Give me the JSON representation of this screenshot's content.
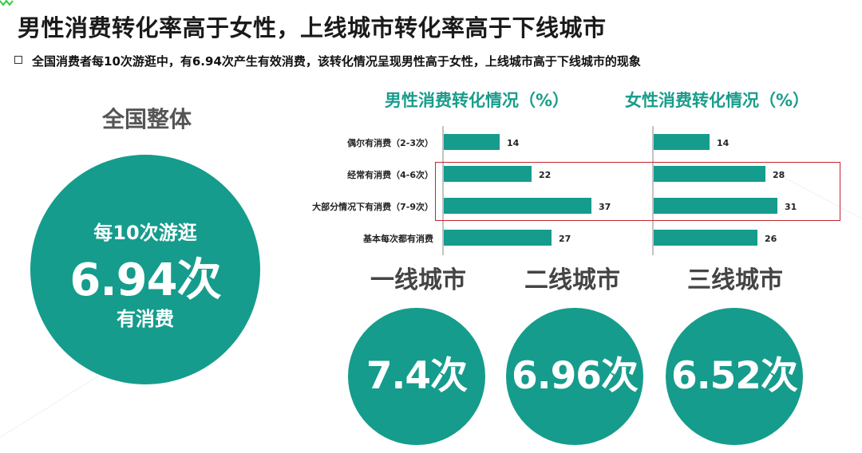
{
  "title": "男性消费转化率高于女性，上线城市转化率高于下线城市",
  "subtitle": "全国消费者每10次游逛中，有6.94次产生有效消费，该转化情况呈现男性高于女性，上线城市高于下线城市的现象",
  "colors": {
    "teal": "#159c8c",
    "title_teal": "#1a9c8c",
    "highlight_red": "#c1272d",
    "accent_green": "#2ecc40"
  },
  "national": {
    "title": "全国整体",
    "line1": "每10次游逛",
    "value": "6.94次",
    "line3": "有消费"
  },
  "chart_data": [
    {
      "type": "bar",
      "orientation": "horizontal",
      "title": "男性消费转化情况（%）",
      "categories": [
        "偶尔有消费（2-3次）",
        "经常有消费（4-6次）",
        "大部分情况下有消费（7-9次）",
        "基本每次都有消费"
      ],
      "values": [
        14,
        22,
        37,
        27
      ],
      "xlim": [
        0,
        40
      ]
    },
    {
      "type": "bar",
      "orientation": "horizontal",
      "title": "女性消费转化情况（%）",
      "categories": [
        "偶尔有消费（2-3次）",
        "经常有消费（4-6次）",
        "大部分情况下有消费（7-9次）",
        "基本每次都有消费"
      ],
      "values": [
        14,
        28,
        31,
        26
      ],
      "xlim": [
        0,
        40
      ]
    }
  ],
  "cities": [
    {
      "title": "一线城市",
      "value": "7.4次"
    },
    {
      "title": "二线城市",
      "value": "6.96次"
    },
    {
      "title": "三线城市",
      "value": "6.52次"
    }
  ]
}
